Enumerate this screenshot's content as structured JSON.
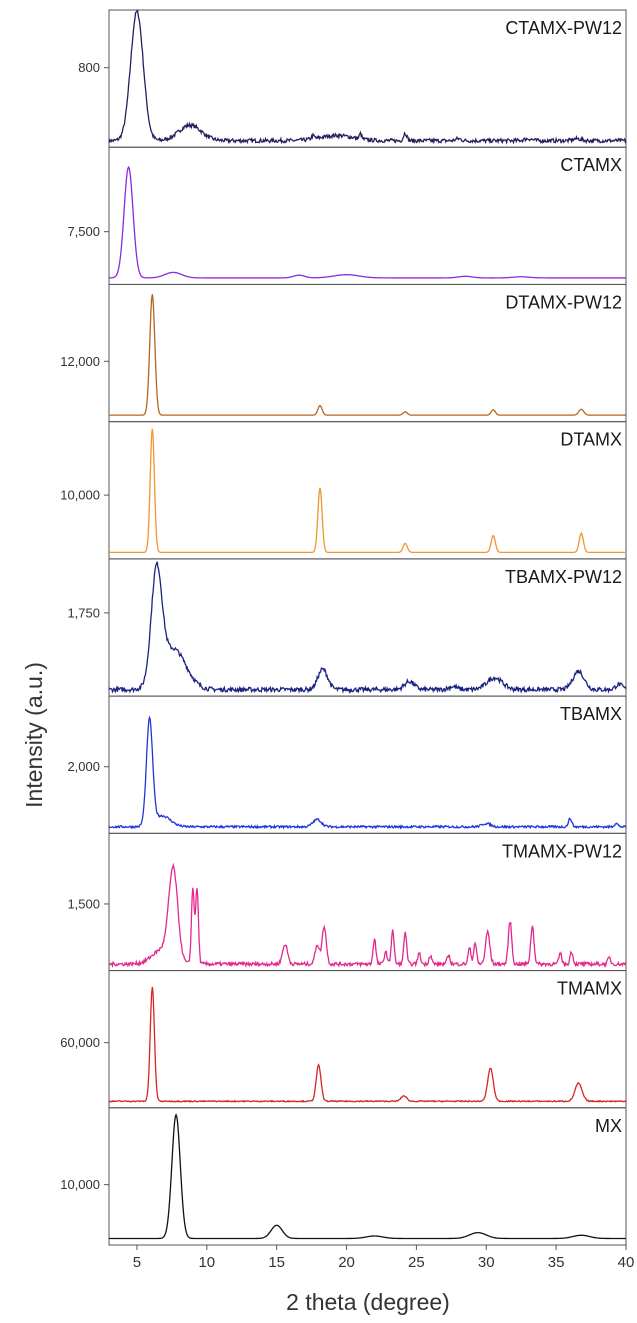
{
  "chart_data": {
    "type": "line",
    "layout": "stacked-panels",
    "xlabel": "2 theta (degree)",
    "ylabel": "Intensity (a.u.)",
    "xlim": [
      3,
      40
    ],
    "xticks": [
      5,
      10,
      15,
      20,
      25,
      30,
      35,
      40
    ],
    "grid": false,
    "legend": "none",
    "series": [
      {
        "name": "CTAMX-PW12",
        "color": "#2d1b5e",
        "ytick": 800,
        "ytick_label": "800",
        "ylim": [
          680,
          880
        ],
        "noise": 3,
        "peaks": [
          [
            5.0,
            200,
            0.45
          ],
          [
            8.8,
            24,
            0.8
          ],
          [
            19.3,
            8,
            1.2
          ],
          [
            21.0,
            8,
            0.08
          ],
          [
            24.2,
            12,
            0.12
          ],
          [
            17.6,
            5,
            0.1
          ],
          [
            28.0,
            3,
            0.2
          ],
          [
            33.0,
            3,
            0.3
          ],
          [
            36.5,
            3,
            0.3
          ]
        ]
      },
      {
        "name": "CTAMX",
        "color": "#8a2be2",
        "ytick": 7500,
        "ytick_label": "7,500",
        "ylim": [
          6400,
          9200
        ],
        "noise": 0,
        "peaks": [
          [
            4.4,
            2400,
            0.32
          ],
          [
            7.6,
            120,
            0.6
          ],
          [
            16.6,
            60,
            0.4
          ],
          [
            20.0,
            70,
            0.9
          ],
          [
            28.5,
            35,
            0.5
          ],
          [
            32.5,
            25,
            0.6
          ]
        ]
      },
      {
        "name": "DTAMX-PW12",
        "color": "#b5651d",
        "ytick": 12000,
        "ytick_label": "12,000",
        "ylim": [
          10600,
          13700
        ],
        "noise": 0,
        "peaks": [
          [
            6.1,
            2900,
            0.18
          ],
          [
            18.1,
            230,
            0.15
          ],
          [
            24.2,
            80,
            0.15
          ],
          [
            30.5,
            130,
            0.15
          ],
          [
            36.8,
            140,
            0.18
          ]
        ]
      },
      {
        "name": "DTAMX",
        "color": "#f2962e",
        "ytick": 10000,
        "ytick_label": "10,000",
        "ylim": [
          8900,
          11200
        ],
        "noise": 0,
        "peaks": [
          [
            6.1,
            2200,
            0.15
          ],
          [
            18.1,
            1150,
            0.15
          ],
          [
            24.2,
            160,
            0.15
          ],
          [
            30.5,
            300,
            0.15
          ],
          [
            36.8,
            340,
            0.15
          ]
        ]
      },
      {
        "name": "TBAMX-PW12",
        "color": "#1a237e",
        "ytick": 1750,
        "ytick_label": "1,750",
        "ylim": [
          1530,
          1880
        ],
        "noise": 6,
        "peaks": [
          [
            6.4,
            295,
            0.38
          ],
          [
            7.6,
            110,
            0.9
          ],
          [
            18.3,
            55,
            0.35
          ],
          [
            24.5,
            22,
            0.35
          ],
          [
            27.6,
            8,
            0.3
          ],
          [
            30.6,
            32,
            0.55
          ],
          [
            36.6,
            50,
            0.4
          ],
          [
            39.5,
            14,
            0.25
          ]
        ]
      },
      {
        "name": "TBAMX",
        "color": "#2234d8",
        "ytick": 2000,
        "ytick_label": "2,000",
        "ylim": [
          1650,
          2350
        ],
        "noise": 6,
        "peaks": [
          [
            5.9,
            570,
            0.22
          ],
          [
            6.8,
            60,
            0.6
          ],
          [
            17.9,
            40,
            0.3
          ],
          [
            30.0,
            18,
            0.3
          ],
          [
            36.0,
            45,
            0.12
          ],
          [
            39.3,
            20,
            0.12
          ]
        ]
      },
      {
        "name": "TMAMX-PW12",
        "color": "#e2278e",
        "ytick": 1500,
        "ytick_label": "1,500",
        "ylim": [
          1320,
          1680
        ],
        "noise": 5,
        "peaks": [
          [
            7.6,
            250,
            0.32
          ],
          [
            6.8,
            40,
            0.7
          ],
          [
            9.0,
            210,
            0.1
          ],
          [
            9.3,
            210,
            0.1
          ],
          [
            15.6,
            55,
            0.18
          ],
          [
            17.9,
            55,
            0.15
          ],
          [
            18.4,
            105,
            0.15
          ],
          [
            22.0,
            70,
            0.1
          ],
          [
            22.8,
            35,
            0.1
          ],
          [
            23.3,
            95,
            0.1
          ],
          [
            24.2,
            90,
            0.1
          ],
          [
            25.2,
            30,
            0.1
          ],
          [
            26.0,
            25,
            0.1
          ],
          [
            27.3,
            25,
            0.1
          ],
          [
            28.8,
            45,
            0.1
          ],
          [
            29.2,
            60,
            0.1
          ],
          [
            30.1,
            90,
            0.15
          ],
          [
            31.7,
            120,
            0.12
          ],
          [
            33.3,
            105,
            0.12
          ],
          [
            35.3,
            30,
            0.1
          ],
          [
            36.1,
            35,
            0.1
          ],
          [
            38.8,
            18,
            0.1
          ]
        ]
      },
      {
        "name": "TMAMX",
        "color": "#d42626",
        "ytick": 60000,
        "ytick_label": "60,000",
        "ylim": [
          39000,
          82000
        ],
        "noise": 180,
        "peaks": [
          [
            6.1,
            38000,
            0.15
          ],
          [
            18.0,
            12000,
            0.17
          ],
          [
            24.1,
            1800,
            0.2
          ],
          [
            30.3,
            11000,
            0.2
          ],
          [
            36.6,
            6000,
            0.25
          ]
        ]
      },
      {
        "name": "MX",
        "color": "#111111",
        "ytick": 10000,
        "ytick_label": "10,000",
        "ylim": [
          5800,
          15100
        ],
        "noise": 0,
        "peaks": [
          [
            7.8,
            8900,
            0.3
          ],
          [
            15.0,
            950,
            0.4
          ],
          [
            22.0,
            180,
            0.6
          ],
          [
            29.4,
            420,
            0.6
          ],
          [
            36.8,
            230,
            0.6
          ]
        ]
      }
    ]
  }
}
